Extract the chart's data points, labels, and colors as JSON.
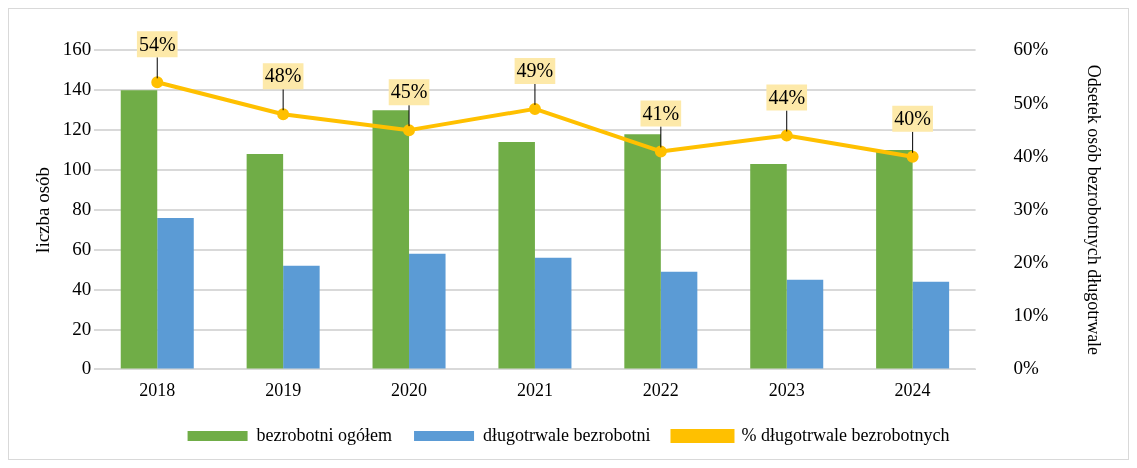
{
  "chart_data": {
    "type": "bar",
    "ylabel": "liczba osób",
    "y2label": "Odsetek osób bezrobotnych długotrwale",
    "categories": [
      "2018",
      "2019",
      "2020",
      "2021",
      "2022",
      "2023",
      "2024"
    ],
    "series": [
      {
        "name": "bezrobotni ogółem",
        "color": "#70ad47",
        "values": [
          140,
          108,
          130,
          114,
          118,
          103,
          110
        ]
      },
      {
        "name": "długotrwale bezrobotni",
        "color": "#5b9bd5",
        "values": [
          76,
          52,
          58,
          56,
          49,
          45,
          44
        ]
      },
      {
        "name": "% długotrwale bezrobotnych",
        "type": "line",
        "axis": "y2",
        "color": "#ffc000",
        "marker": "circle",
        "values": [
          54,
          48,
          45,
          49,
          41,
          44,
          40
        ],
        "value_labels": [
          "54%",
          "48%",
          "45%",
          "49%",
          "41%",
          "44%",
          "40%"
        ]
      }
    ],
    "ylim": [
      0,
      160
    ],
    "yticks": [
      0,
      20,
      40,
      60,
      80,
      100,
      120,
      140,
      160
    ],
    "y2lim": [
      0,
      60
    ],
    "y2ticks": [
      {
        "value": 0,
        "label": "0%"
      },
      {
        "value": 10,
        "label": "10%"
      },
      {
        "value": 20,
        "label": "20%"
      },
      {
        "value": 30,
        "label": "30%"
      },
      {
        "value": 40,
        "label": "40%"
      },
      {
        "value": 50,
        "label": "50%"
      },
      {
        "value": 60,
        "label": "60%"
      }
    ],
    "grid": "y",
    "legend": "bottom"
  }
}
